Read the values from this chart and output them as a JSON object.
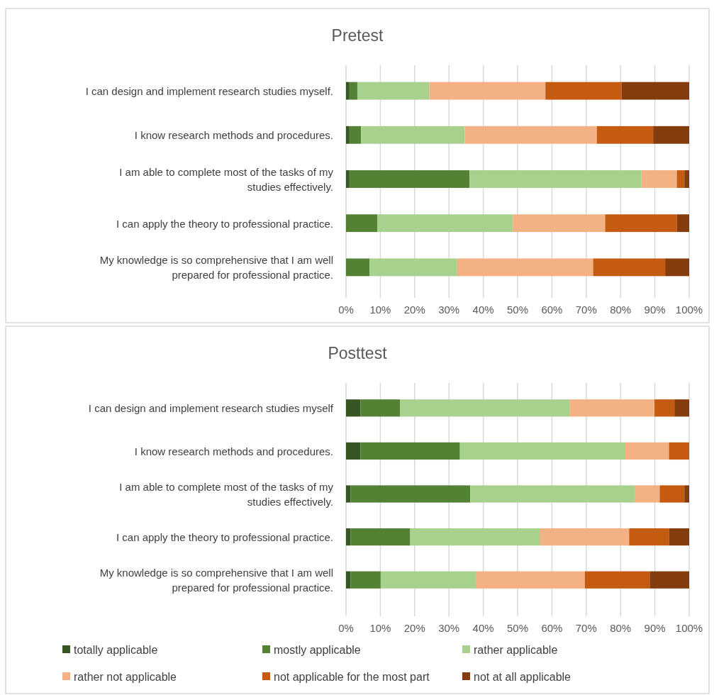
{
  "chart_data": [
    {
      "type": "bar",
      "orientation": "horizontal",
      "stacked": true,
      "title": "Pretest",
      "categories": [
        "I can design and implement research studies myself.",
        "I know research methods and procedures.",
        "I am able to complete most of the tasks of my studies effectively.",
        "I can apply the theory to professional practice.",
        "My knowledge is so comprehensive that I am well prepared for professional practice."
      ],
      "series": [
        {
          "color": "#375623",
          "values": [
            1.0,
            1.0,
            1.0,
            0,
            0
          ]
        },
        {
          "color": "#548235",
          "values": [
            2.3,
            3.4,
            35.0,
            9.1,
            6.9
          ]
        },
        {
          "color": "#a9d18e",
          "values": [
            21.0,
            30.2,
            50.1,
            39.5,
            25.5
          ]
        },
        {
          "color": "#f4b183",
          "values": [
            33.8,
            38.5,
            10.3,
            26.9,
            39.6
          ]
        },
        {
          "color": "#c55a11",
          "values": [
            22.2,
            16.4,
            2.2,
            20.9,
            21.0
          ]
        },
        {
          "color": "#843c0c",
          "values": [
            19.7,
            10.5,
            1.4,
            3.6,
            7.0
          ]
        }
      ],
      "xlim": [
        0,
        100
      ],
      "xticks": [
        {
          "value": 0,
          "label": "0%"
        },
        {
          "value": 10,
          "label": "10%"
        },
        {
          "value": 20,
          "label": "20%"
        },
        {
          "value": 30,
          "label": "30%"
        },
        {
          "value": 40,
          "label": "40%"
        },
        {
          "value": 50,
          "label": "50%"
        },
        {
          "value": 60,
          "label": "60%"
        },
        {
          "value": 70,
          "label": "70%"
        },
        {
          "value": 80,
          "label": "80%"
        },
        {
          "value": 90,
          "label": "90%"
        },
        {
          "value": 100,
          "label": "100%"
        }
      ],
      "grid": "x",
      "legend": false
    },
    {
      "type": "bar",
      "orientation": "horizontal",
      "stacked": true,
      "title": "Posttest",
      "categories": [
        "I can design and implement research studies myself",
        "I know research methods and procedures.",
        "I am able to complete most of the tasks of my studies effectively.",
        "I can apply the theory to professional practice.",
        "My knowledge is so comprehensive that I am well prepared for professional practice."
      ],
      "series": [
        {
          "name": "totally applicable",
          "color": "#375623",
          "values": [
            4.2,
            4.2,
            1.3,
            1.3,
            1.3
          ]
        },
        {
          "name": "mostly applicable",
          "color": "#548235",
          "values": [
            11.6,
            29.0,
            34.9,
            17.4,
            8.8
          ]
        },
        {
          "name": "rather applicable",
          "color": "#a9d18e",
          "values": [
            49.3,
            48.0,
            47.9,
            37.9,
            27.7
          ]
        },
        {
          "name": "rather not applicable",
          "color": "#f4b183",
          "values": [
            24.8,
            12.9,
            7.3,
            25.9,
            31.8
          ]
        },
        {
          "name": "not applicable for the most part",
          "color": "#c55a11",
          "values": [
            5.8,
            5.9,
            7.2,
            11.6,
            18.9
          ]
        },
        {
          "name": "not at all applicable",
          "color": "#843c0c",
          "values": [
            4.3,
            0,
            1.4,
            5.9,
            11.5
          ]
        }
      ],
      "xlim": [
        0,
        100
      ],
      "xticks": [
        {
          "value": 0,
          "label": "0%"
        },
        {
          "value": 10,
          "label": "10%"
        },
        {
          "value": 20,
          "label": "20%"
        },
        {
          "value": 30,
          "label": "30%"
        },
        {
          "value": 40,
          "label": "40%"
        },
        {
          "value": 50,
          "label": "50%"
        },
        {
          "value": 60,
          "label": "60%"
        },
        {
          "value": 70,
          "label": "70%"
        },
        {
          "value": 80,
          "label": "80%"
        },
        {
          "value": 90,
          "label": "90%"
        },
        {
          "value": 100,
          "label": "100%"
        }
      ],
      "grid": "x",
      "legend": "bottom"
    }
  ]
}
